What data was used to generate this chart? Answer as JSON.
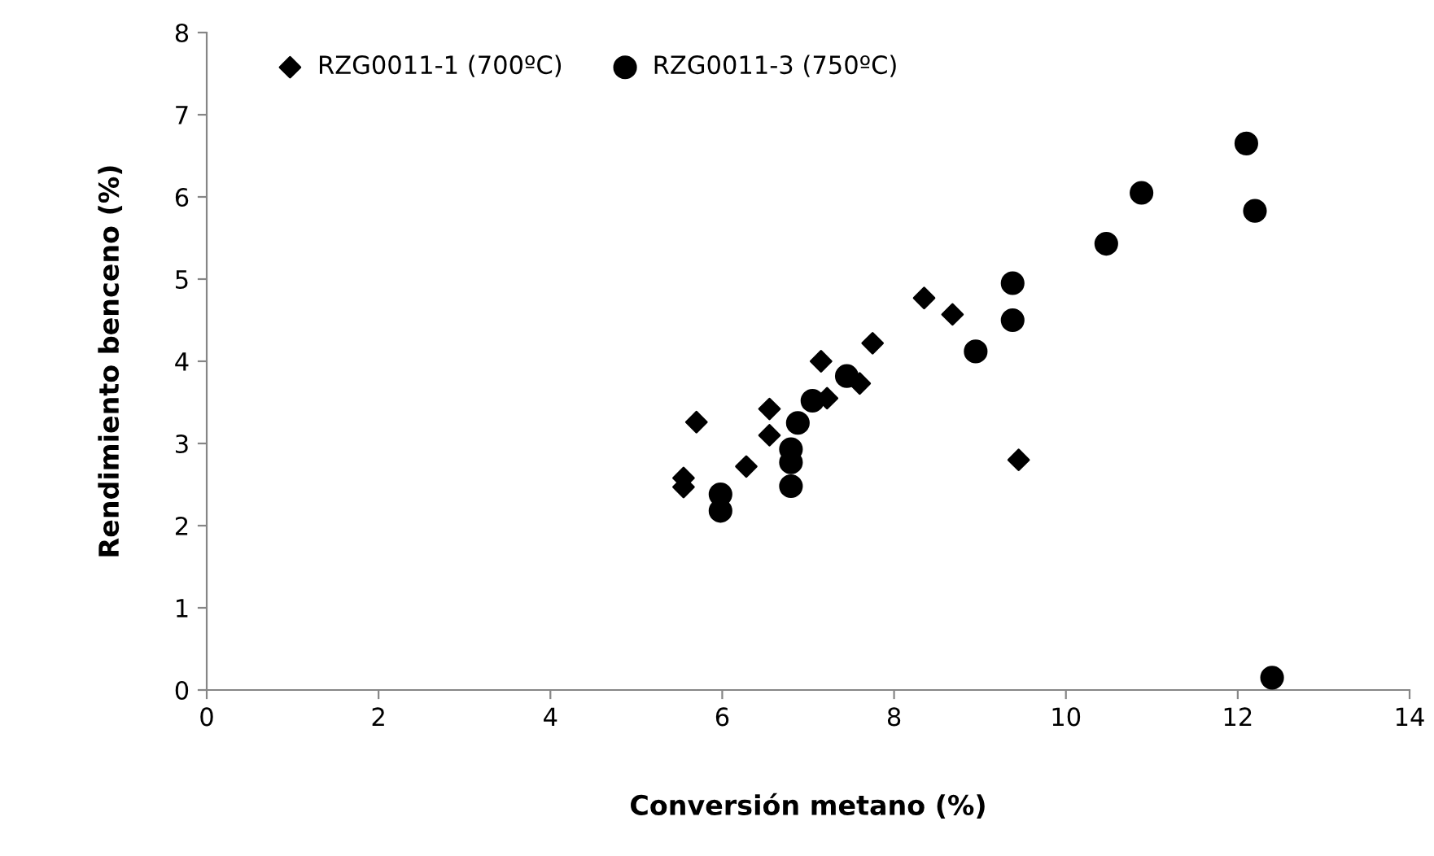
{
  "chart_data": {
    "type": "scatter",
    "xlabel": "Conversión metano (%)",
    "ylabel": "Rendimiento benceno (%)",
    "xlim": [
      0,
      14
    ],
    "xticks": [
      0,
      2,
      4,
      6,
      8,
      10,
      12,
      14
    ],
    "ylim": [
      0,
      8
    ],
    "yticks": [
      0,
      1,
      2,
      3,
      4,
      5,
      6,
      7,
      8
    ],
    "grid": false,
    "legend": "top left",
    "series": [
      {
        "name": "RZG0011-1 (700ºC)",
        "color": "#000000",
        "marker": "diamond",
        "x": [
          5.55,
          5.55,
          5.7,
          6.28,
          6.55,
          6.55,
          7.15,
          7.22,
          7.6,
          7.75,
          8.35,
          8.68,
          9.45
        ],
        "values": [
          2.58,
          2.47,
          3.26,
          2.72,
          3.42,
          3.1,
          4.0,
          3.55,
          3.73,
          4.22,
          4.77,
          4.57,
          2.8
        ]
      },
      {
        "name": "RZG0011-3 (750ºC)",
        "color": "#000000",
        "marker": "circle",
        "x": [
          5.98,
          5.98,
          6.8,
          6.8,
          6.8,
          6.88,
          7.05,
          7.45,
          8.95,
          9.38,
          9.38,
          10.47,
          10.88,
          12.1,
          12.2,
          12.4
        ],
        "values": [
          2.38,
          2.18,
          2.93,
          2.77,
          2.48,
          3.25,
          3.52,
          3.82,
          4.12,
          4.95,
          4.5,
          5.43,
          6.05,
          6.65,
          5.83,
          0.15
        ]
      }
    ]
  }
}
